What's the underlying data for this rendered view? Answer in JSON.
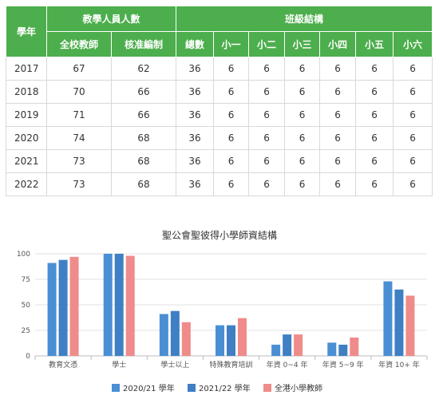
{
  "table": {
    "year_header": "學年",
    "staff_group_header": "教學人員人數",
    "class_group_header": "班級結構",
    "staff_columns": [
      "全校教師",
      "核准編制"
    ],
    "class_columns": [
      "總數",
      "小一",
      "小二",
      "小三",
      "小四",
      "小五",
      "小六"
    ],
    "rows": [
      {
        "year": "2017",
        "teachers": "67",
        "approved": "62",
        "total": "36",
        "p1": "6",
        "p2": "6",
        "p3": "6",
        "p4": "6",
        "p5": "6",
        "p6": "6"
      },
      {
        "year": "2018",
        "teachers": "70",
        "approved": "66",
        "total": "36",
        "p1": "6",
        "p2": "6",
        "p3": "6",
        "p4": "6",
        "p5": "6",
        "p6": "6"
      },
      {
        "year": "2019",
        "teachers": "71",
        "approved": "66",
        "total": "36",
        "p1": "6",
        "p2": "6",
        "p3": "6",
        "p4": "6",
        "p5": "6",
        "p6": "6"
      },
      {
        "year": "2020",
        "teachers": "74",
        "approved": "68",
        "total": "36",
        "p1": "6",
        "p2": "6",
        "p3": "6",
        "p4": "6",
        "p5": "6",
        "p6": "6"
      },
      {
        "year": "2021",
        "teachers": "73",
        "approved": "68",
        "total": "36",
        "p1": "6",
        "p2": "6",
        "p3": "6",
        "p4": "6",
        "p5": "6",
        "p6": "6"
      },
      {
        "year": "2022",
        "teachers": "73",
        "approved": "68",
        "total": "36",
        "p1": "6",
        "p2": "6",
        "p3": "6",
        "p4": "6",
        "p5": "6",
        "p6": "6"
      }
    ]
  },
  "chart_data": {
    "type": "bar",
    "title": "聖公會聖彼得小學師資結構",
    "categories": [
      "教育文憑",
      "學士",
      "學士以上",
      "特殊教育培訓",
      "年資 0~4 年",
      "年資 5~9 年",
      "年資 10+ 年"
    ],
    "series": [
      {
        "name": "2020/21 學年",
        "color": "#4a8fd4",
        "values": [
          91,
          100,
          41,
          30,
          11,
          13,
          73
        ]
      },
      {
        "name": "2021/22 學年",
        "color": "#3f7fc4",
        "values": [
          94,
          100,
          44,
          30,
          21,
          11,
          65
        ]
      },
      {
        "name": "全港小學教師",
        "color": "#f08b8b",
        "values": [
          97,
          98,
          33,
          37,
          21,
          18,
          59
        ]
      }
    ],
    "ylim": [
      0,
      100
    ],
    "yticks": [
      0,
      25,
      50,
      75,
      100
    ],
    "grid": true,
    "legend": "bottom"
  }
}
